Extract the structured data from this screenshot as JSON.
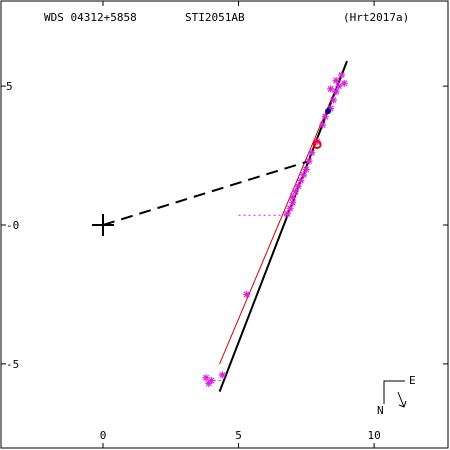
{
  "header": {
    "left": "WDS 04312+5858",
    "center": "STI2051AB",
    "right": "(Hrt2017a)"
  },
  "compass": {
    "east": "E",
    "north": "N"
  },
  "colors": {
    "frame": "#000000",
    "orbit": "#000000",
    "reference_orbit": "#cc0000",
    "observations": "#dd22dd",
    "residual_links": "#dd22dd",
    "highlight": "#ff0000",
    "recent_point": "#000080"
  },
  "chart_data": {
    "type": "scatter",
    "title": "",
    "xlabel": "",
    "ylabel": "",
    "xlim": [
      -3.8,
      12.8
    ],
    "ylim": [
      8.1,
      -8.1
    ],
    "x_ticks": [
      0,
      5,
      10
    ],
    "x_tick_labels": [
      "0",
      "5",
      "10"
    ],
    "y_ticks": [
      -5,
      0,
      5
    ],
    "y_tick_labels": [
      "-5",
      "-0",
      "5"
    ],
    "grid": false,
    "primary_origin": [
      0,
      0
    ],
    "node_line": {
      "from": [
        0,
        0
      ],
      "to": [
        7.6,
        2.3
      ]
    },
    "orbit_segment": {
      "from": [
        4.3,
        -6.0
      ],
      "to": [
        9.0,
        5.9
      ]
    },
    "reference_orbit_segment": {
      "from": [
        4.3,
        -5.0
      ],
      "to": [
        8.8,
        5.4
      ]
    },
    "observations": [
      [
        3.8,
        -5.5
      ],
      [
        3.9,
        -5.7
      ],
      [
        4.0,
        -5.6
      ],
      [
        4.4,
        -5.4
      ],
      [
        5.3,
        -2.5
      ],
      [
        6.8,
        0.4
      ],
      [
        6.9,
        0.6
      ],
      [
        7.0,
        0.8
      ],
      [
        7.0,
        1.0
      ],
      [
        7.1,
        1.2
      ],
      [
        7.2,
        1.4
      ],
      [
        7.3,
        1.6
      ],
      [
        7.4,
        1.8
      ],
      [
        7.5,
        2.0
      ],
      [
        7.6,
        2.3
      ],
      [
        7.7,
        2.6
      ],
      [
        7.9,
        3.0
      ],
      [
        8.1,
        3.6
      ],
      [
        8.2,
        3.9
      ],
      [
        8.4,
        4.2
      ],
      [
        8.5,
        4.5
      ],
      [
        8.6,
        4.8
      ],
      [
        8.7,
        5.0
      ],
      [
        8.9,
        5.1
      ],
      [
        8.8,
        5.4
      ],
      [
        8.6,
        5.2
      ],
      [
        8.4,
        4.9
      ]
    ],
    "residual_links": [
      {
        "obs": [
          5.0,
          0.35
        ],
        "fit": [
          6.8,
          0.35
        ]
      },
      {
        "obs": [
          3.9,
          -5.6
        ],
        "fit": [
          4.4,
          -5.6
        ]
      }
    ],
    "highlight_point": [
      7.9,
      2.9
    ],
    "recent_point": [
      8.3,
      4.1
    ]
  }
}
